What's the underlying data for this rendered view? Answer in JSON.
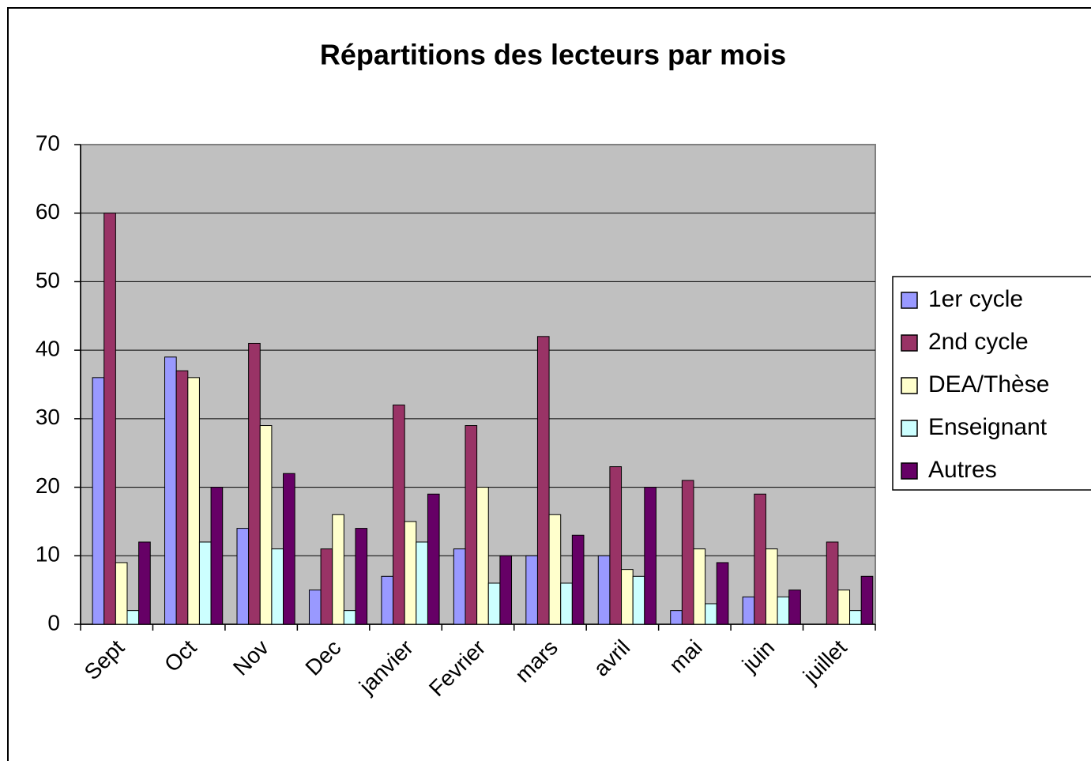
{
  "chart_data": {
    "type": "bar",
    "title": "Répartitions des lecteurs par mois",
    "categories": [
      "Sept",
      "Oct",
      "Nov",
      "Dec",
      "janvier",
      "Fevrier",
      "mars",
      "avril",
      "mai",
      "juin",
      "juillet"
    ],
    "series": [
      {
        "name": "1er cycle",
        "color": "#9999ff",
        "values": [
          36,
          39,
          14,
          5,
          7,
          11,
          10,
          10,
          2,
          4,
          0
        ]
      },
      {
        "name": "2nd cycle",
        "color": "#993366",
        "values": [
          60,
          37,
          41,
          11,
          32,
          29,
          42,
          23,
          21,
          19,
          12
        ]
      },
      {
        "name": "DEA/Thèse",
        "color": "#ffffcc",
        "values": [
          9,
          36,
          29,
          16,
          15,
          20,
          16,
          8,
          11,
          11,
          5
        ]
      },
      {
        "name": "Enseignant",
        "color": "#ccffff",
        "values": [
          2,
          12,
          11,
          2,
          12,
          6,
          6,
          7,
          3,
          4,
          2
        ]
      },
      {
        "name": "Autres",
        "color": "#660066",
        "values": [
          12,
          20,
          22,
          14,
          19,
          10,
          13,
          20,
          9,
          5,
          7
        ]
      }
    ],
    "ylim": [
      0,
      70
    ],
    "yticks": [
      0,
      10,
      20,
      30,
      40,
      50,
      60,
      70
    ],
    "grid": true,
    "legend": "right"
  }
}
